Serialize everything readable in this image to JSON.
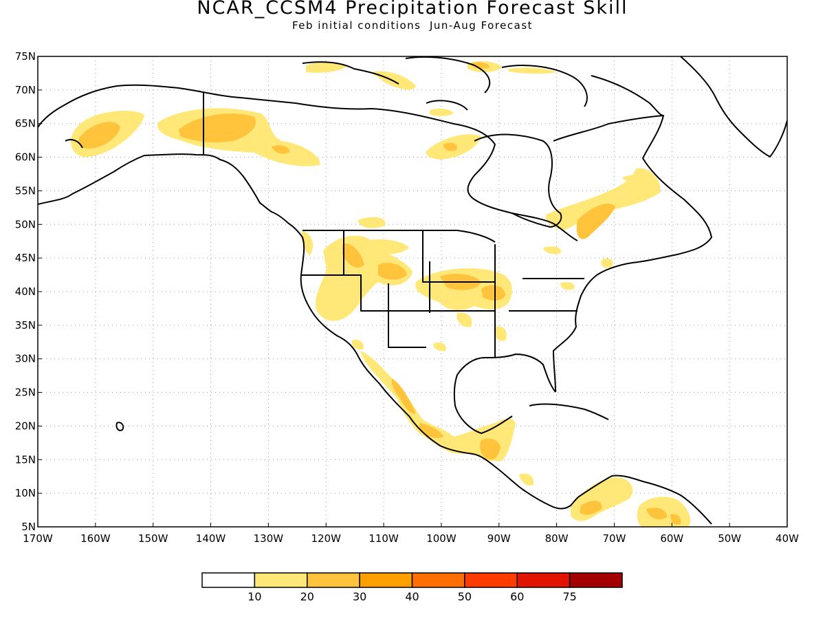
{
  "title": "NCAR_CCSM4 Precipitation Forecast Skill",
  "subtitle": "Feb initial conditions  Jun-Aug Forecast",
  "map": {
    "projection": "cylindrical equidistant",
    "lon_range": [
      -170,
      -40
    ],
    "lat_range": [
      5,
      75
    ],
    "grid": "dotted",
    "lat_ticks": [
      "75N",
      "70N",
      "65N",
      "60N",
      "55N",
      "50N",
      "45N",
      "40N",
      "35N",
      "30N",
      "25N",
      "20N",
      "15N",
      "10N",
      "5N"
    ],
    "lon_ticks": [
      "170W",
      "160W",
      "150W",
      "140W",
      "130W",
      "120W",
      "110W",
      "100W",
      "90W",
      "80W",
      "70W",
      "60W",
      "50W",
      "40W"
    ],
    "coastline_color": "#000000"
  },
  "legend": {
    "colors": [
      "#ffffff",
      "#ffe878",
      "#ffc33c",
      "#ffa000",
      "#ff6e00",
      "#ff3c00",
      "#e11400",
      "#a50000"
    ],
    "labels": [
      "10",
      "20",
      "30",
      "40",
      "50",
      "60",
      "75"
    ]
  }
}
